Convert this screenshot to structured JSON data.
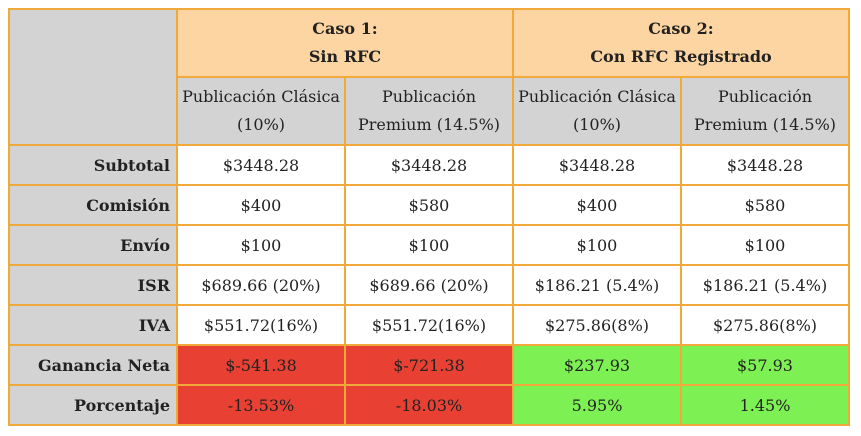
{
  "colors": {
    "border": "#f2a93c",
    "case_header": "#fcd5a2",
    "label_bg": "#d3d3d3",
    "negative": "#e84134",
    "positive": "#7df153"
  },
  "cases": [
    {
      "line1": "Caso 1:",
      "line2": "Sin RFC"
    },
    {
      "line1": "Caso 2:",
      "line2": "Con RFC Registrado"
    }
  ],
  "columns": [
    {
      "line1": "Publicación Clásica",
      "line2": "(10%)"
    },
    {
      "line1": "Publicación",
      "line2": "Premium (14.5%)"
    },
    {
      "line1": "Publicación Clásica",
      "line2": "(10%)"
    },
    {
      "line1": "Publicación",
      "line2": "Premium (14.5%)"
    }
  ],
  "rows": [
    {
      "label": "Subtotal",
      "values": [
        "$3448.28",
        "$3448.28",
        "$3448.28",
        "$3448.28"
      ]
    },
    {
      "label": "Comisión",
      "values": [
        "$400",
        "$580",
        "$400",
        "$580"
      ]
    },
    {
      "label": "Envío",
      "values": [
        "$100",
        "$100",
        "$100",
        "$100"
      ]
    },
    {
      "label": "ISR",
      "values": [
        "$689.66 (20%)",
        "$689.66 (20%)",
        "$186.21 (5.4%)",
        "$186.21 (5.4%)"
      ]
    },
    {
      "label": "IVA",
      "values": [
        "$551.72(16%)",
        "$551.72(16%)",
        "$275.86(8%)",
        "$275.86(8%)"
      ]
    },
    {
      "label": "Ganancia Neta",
      "values": [
        "$-541.38",
        "$-721.38",
        "$237.93",
        "$57.93"
      ]
    },
    {
      "label": "Porcentaje",
      "values": [
        "-13.53%",
        "-18.03%",
        "5.95%",
        "1.45%"
      ]
    }
  ]
}
